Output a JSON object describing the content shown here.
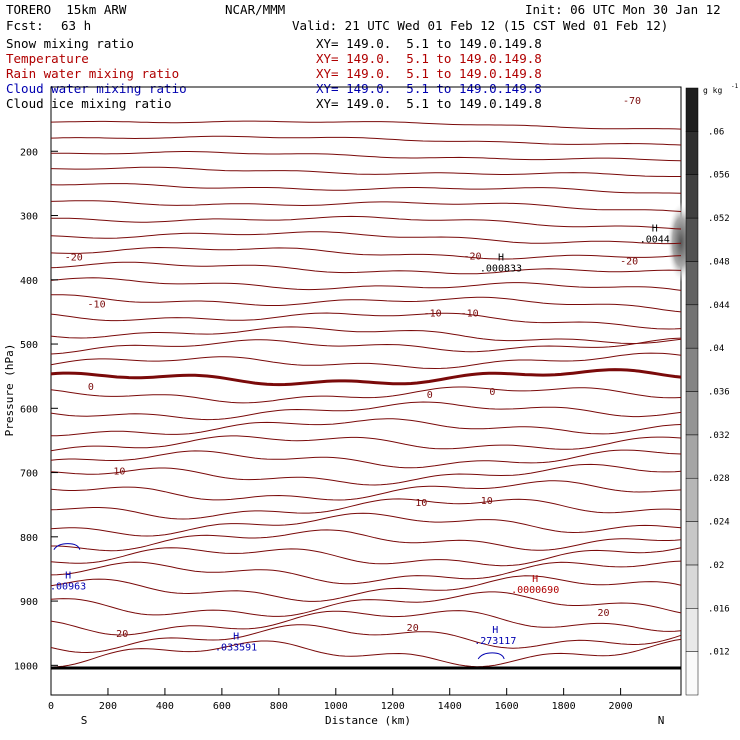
{
  "header": {
    "model": "TORERO  15km ARW",
    "center": "NCAR/MMM",
    "init": "Init: 06 UTC Mon 30 Jan 12",
    "fcst_label": "Fcst:",
    "fcst_value": "63 h",
    "valid": "Valid: 21 UTC Wed 01 Feb 12 (15 CST Wed 01 Feb 12)"
  },
  "fields": [
    {
      "name": "Snow mixing ratio",
      "color": "#000000",
      "xy": "XY= 149.0.  5.1 to 149.0.149.8"
    },
    {
      "name": "Temperature",
      "color": "#b00000",
      "xy": "XY= 149.0.  5.1 to 149.0.149.8"
    },
    {
      "name": "Rain water mixing ratio",
      "color": "#b00000",
      "xy": "XY= 149.0.  5.1 to 149.0.149.8"
    },
    {
      "name": "Cloud water mixing ratio",
      "color": "#0000b0",
      "xy": "XY= 149.0.  5.1 to 149.0.149.8"
    },
    {
      "name": "Cloud ice mixing ratio",
      "color": "#000000",
      "xy": "XY= 149.0.  5.1 to 149.0.149.8"
    }
  ],
  "chart_data": {
    "type": "contour",
    "xlabel": "Distance (km)",
    "ylabel": "Pressure (hPa)",
    "xlim": [
      0,
      2220
    ],
    "ylim": [
      1000,
      100
    ],
    "x_ticks": [
      0,
      200,
      400,
      600,
      800,
      1000,
      1200,
      1400,
      1600,
      1800,
      2000
    ],
    "x_tick_labels": [
      "0",
      "200",
      "400",
      "600",
      "800",
      "1000",
      "1200",
      "1400",
      "1600",
      "1800",
      "2000"
    ],
    "y_ticks": [
      200,
      300,
      400,
      500,
      600,
      700,
      800,
      900,
      1000
    ],
    "y_tick_labels": [
      "200",
      "300",
      "400",
      "500",
      "600",
      "700",
      "800",
      "900",
      "1000"
    ],
    "start_label": "S",
    "end_label": "N",
    "temperature_contour_interval": 5,
    "temperature_labels": [
      {
        "text": "-70",
        "x": 2040,
        "p": 120
      },
      {
        "text": "-20",
        "x": 80,
        "p": 364
      },
      {
        "text": "-20",
        "x": 1480,
        "p": 362
      },
      {
        "text": "-20",
        "x": 2030,
        "p": 370
      },
      {
        "text": "-10",
        "x": 160,
        "p": 437
      },
      {
        "text": "-10",
        "x": 1340,
        "p": 451
      },
      {
        "text": "-10",
        "x": 1470,
        "p": 451
      },
      {
        "text": "0",
        "x": 140,
        "p": 565
      },
      {
        "text": "0",
        "x": 1330,
        "p": 578
      },
      {
        "text": "0",
        "x": 1550,
        "p": 573
      },
      {
        "text": "10",
        "x": 240,
        "p": 697
      },
      {
        "text": "10",
        "x": 1300,
        "p": 746
      },
      {
        "text": "10",
        "x": 1530,
        "p": 743
      },
      {
        "text": "20",
        "x": 250,
        "p": 950
      },
      {
        "text": "20",
        "x": 1270,
        "p": 940
      },
      {
        "text": "20",
        "x": 1940,
        "p": 917
      }
    ],
    "extrema": [
      {
        "text": "H",
        "value": ".000833",
        "x": 1580,
        "p": 370,
        "color": "#000000"
      },
      {
        "text": "H",
        "value": ".0044",
        "x": 2120,
        "p": 325,
        "color": "#000000"
      },
      {
        "text": "H",
        "value": ".0000690",
        "x": 1700,
        "p": 870,
        "color": "#b00000"
      },
      {
        "text": "H",
        "value": ".033591",
        "x": 650,
        "p": 960,
        "color": "#0000b0"
      },
      {
        "text": "H",
        "value": ".273117",
        "x": 1560,
        "p": 950,
        "color": "#0000b0"
      },
      {
        "text": "H",
        "value": ".00963",
        "x": 60,
        "p": 865,
        "color": "#0000b0"
      }
    ],
    "colorbar": {
      "unit": "g kg",
      "unit_exponent": "-1",
      "levels": [
        ".012",
        ".016",
        ".02",
        ".024",
        ".028",
        ".032",
        ".036",
        ".04",
        ".044",
        ".048",
        ".052",
        ".056",
        ".06"
      ]
    }
  }
}
